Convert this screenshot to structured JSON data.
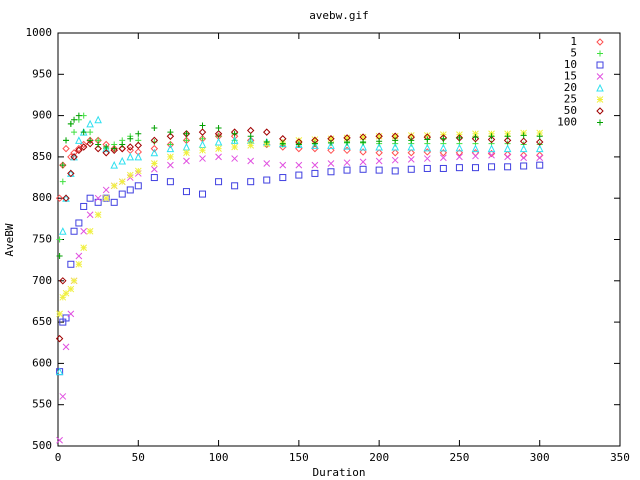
{
  "chart_data": {
    "type": "scatter",
    "title": "avebw.gif",
    "x_label": "Duration",
    "y_label": "AveBW",
    "xlim": [
      0,
      350
    ],
    "ylim": [
      500,
      1000
    ],
    "xticks": [
      0,
      50,
      100,
      150,
      200,
      250,
      300,
      350
    ],
    "yticks": [
      500,
      550,
      600,
      650,
      700,
      750,
      800,
      850,
      900,
      950,
      1000
    ],
    "legend": "top-right",
    "x": [
      1,
      3,
      5,
      8,
      10,
      13,
      16,
      20,
      25,
      30,
      35,
      40,
      45,
      50,
      60,
      70,
      80,
      90,
      100,
      110,
      120,
      130,
      140,
      150,
      160,
      170,
      180,
      190,
      200,
      210,
      220,
      230,
      240,
      250,
      260,
      270,
      280,
      290,
      300
    ],
    "series": [
      {
        "name": "1",
        "color": "#ff5050",
        "marker": "diamond",
        "values": [
          800,
          840,
          860,
          850,
          855,
          860,
          865,
          870,
          870,
          865,
          860,
          860,
          858,
          856,
          860,
          865,
          870,
          872,
          875,
          875,
          870,
          865,
          862,
          860,
          860,
          858,
          858,
          856,
          855,
          855,
          855,
          856,
          855,
          855,
          855,
          854,
          853,
          852,
          852
        ]
      },
      {
        "name": "5",
        "color": "#40e040",
        "marker": "plus",
        "values": [
          750,
          820,
          870,
          890,
          880,
          895,
          900,
          880,
          870,
          860,
          865,
          870,
          875,
          870,
          868,
          865,
          870,
          872,
          875,
          870,
          868,
          865,
          865,
          866,
          866,
          867,
          867,
          867,
          866,
          866,
          866,
          866,
          866,
          866,
          866,
          866,
          866,
          865,
          865
        ]
      },
      {
        "name": "10",
        "color": "#4040e0",
        "marker": "square",
        "values": [
          590,
          650,
          655,
          720,
          760,
          770,
          790,
          800,
          795,
          800,
          795,
          805,
          810,
          815,
          825,
          820,
          808,
          805,
          820,
          815,
          820,
          822,
          825,
          828,
          830,
          832,
          834,
          835,
          834,
          833,
          835,
          836,
          836,
          837,
          837,
          838,
          838,
          839,
          840
        ]
      },
      {
        "name": "15",
        "color": "#e050e0",
        "marker": "cross",
        "values": [
          507,
          560,
          620,
          660,
          700,
          730,
          760,
          780,
          800,
          810,
          815,
          820,
          825,
          830,
          835,
          840,
          845,
          848,
          850,
          848,
          845,
          842,
          840,
          840,
          840,
          842,
          843,
          844,
          845,
          846,
          847,
          848,
          849,
          850,
          851,
          852,
          850,
          849,
          849
        ]
      },
      {
        "name": "20",
        "color": "#30e0f0",
        "marker": "triangle",
        "values": [
          590,
          760,
          800,
          830,
          850,
          870,
          880,
          890,
          895,
          860,
          840,
          845,
          850,
          850,
          855,
          860,
          862,
          865,
          868,
          870,
          870,
          868,
          866,
          865,
          864,
          864,
          863,
          862,
          862,
          862,
          862,
          861,
          861,
          861,
          860,
          860,
          860,
          860,
          860
        ]
      },
      {
        "name": "25",
        "color": "#f0f040",
        "marker": "star",
        "values": [
          660,
          680,
          685,
          690,
          700,
          720,
          740,
          760,
          780,
          800,
          815,
          820,
          828,
          833,
          842,
          850,
          855,
          858,
          860,
          862,
          864,
          866,
          868,
          870,
          871,
          872,
          873,
          874,
          875,
          875,
          876,
          876,
          877,
          877,
          878,
          878,
          878,
          879,
          879
        ]
      },
      {
        "name": "50",
        "color": "#a00000",
        "marker": "diamond",
        "values": [
          630,
          700,
          800,
          830,
          850,
          858,
          862,
          866,
          860,
          855,
          858,
          860,
          862,
          864,
          870,
          875,
          878,
          880,
          878,
          880,
          882,
          880,
          872,
          868,
          870,
          872,
          873,
          874,
          875,
          875,
          874,
          874,
          873,
          873,
          872,
          871,
          870,
          869,
          868
        ]
      },
      {
        "name": "100",
        "color": "#00a000",
        "marker": "plus",
        "values": [
          730,
          840,
          870,
          890,
          895,
          900,
          880,
          870,
          865,
          862,
          860,
          865,
          872,
          878,
          885,
          880,
          878,
          888,
          885,
          878,
          875,
          868,
          866,
          865,
          866,
          867,
          868,
          868,
          869,
          870,
          870,
          871,
          872,
          873,
          874,
          875,
          875,
          876,
          875
        ]
      }
    ]
  }
}
